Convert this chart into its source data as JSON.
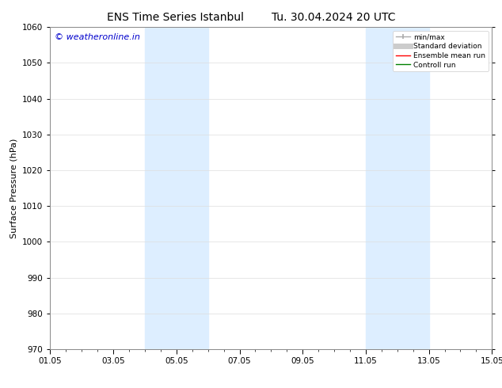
{
  "title_left": "ENS Time Series Istanbul",
  "title_right": "Tu. 30.04.2024 20 UTC",
  "ylabel": "Surface Pressure (hPa)",
  "ylim": [
    970,
    1060
  ],
  "yticks": [
    970,
    980,
    990,
    1000,
    1010,
    1020,
    1030,
    1040,
    1050,
    1060
  ],
  "xlim_start": 0,
  "xlim_end": 14,
  "xtick_labels": [
    "01.05",
    "03.05",
    "05.05",
    "07.05",
    "09.05",
    "11.05",
    "13.05",
    "15.05"
  ],
  "xtick_positions": [
    0,
    2,
    4,
    6,
    8,
    10,
    12,
    14
  ],
  "shaded_bands": [
    {
      "x_start": 3.0,
      "x_end": 5.0
    },
    {
      "x_start": 10.0,
      "x_end": 12.0
    }
  ],
  "shade_color": "#ddeeff",
  "watermark_text": "© weatheronline.in",
  "watermark_color": "#0000cc",
  "legend_entries": [
    {
      "label": "min/max",
      "color": "#aaaaaa",
      "linestyle": "-",
      "linewidth": 1.0
    },
    {
      "label": "Standard deviation",
      "color": "#cccccc",
      "linestyle": "-",
      "linewidth": 5
    },
    {
      "label": "Ensemble mean run",
      "color": "red",
      "linestyle": "-",
      "linewidth": 1.0
    },
    {
      "label": "Controll run",
      "color": "green",
      "linestyle": "-",
      "linewidth": 1.0
    }
  ],
  "background_color": "#ffffff",
  "grid_color": "#dddddd",
  "title_fontsize": 10,
  "axis_fontsize": 8,
  "tick_fontsize": 7.5,
  "watermark_fontsize": 8
}
